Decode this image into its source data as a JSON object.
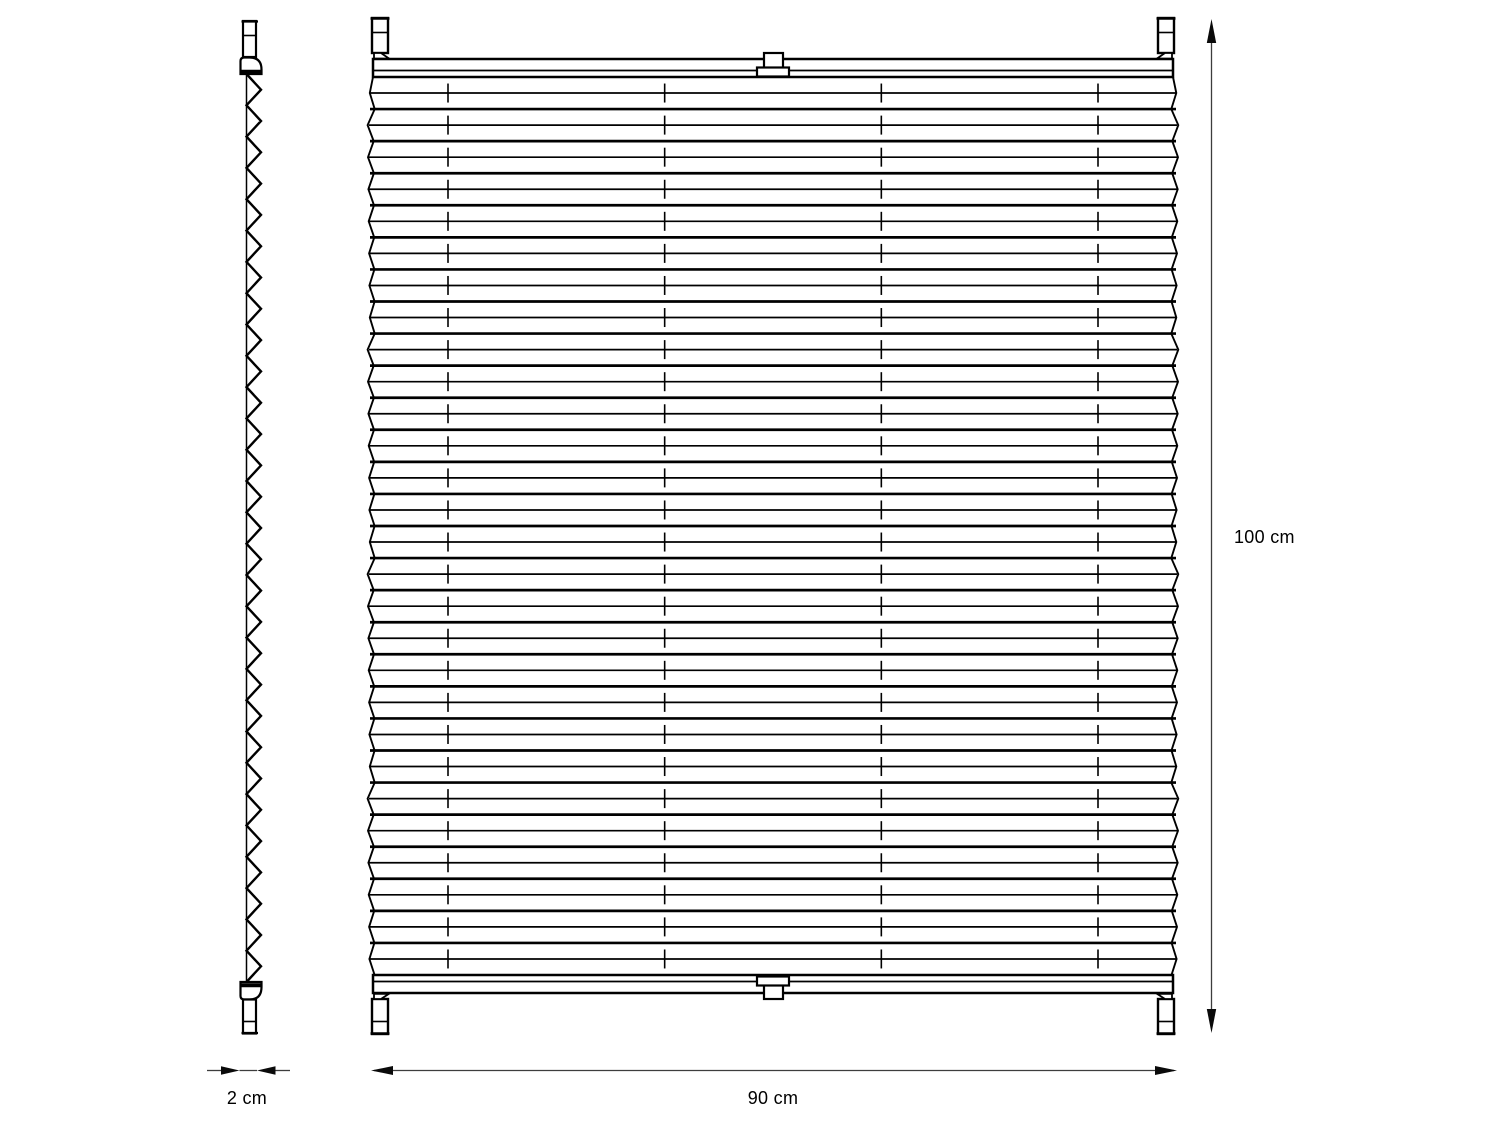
{
  "diagram": {
    "type": "technical-dimension-drawing",
    "subject": "Pleated blind (plissee) — side profile view and front view with dimensions",
    "colors": {
      "line": "#000000",
      "dimension_line": "#3d3d3d",
      "arrowhead": "#0a0a0a",
      "background": "#ffffff"
    },
    "labels": {
      "depth": "2 cm",
      "width": "90 cm",
      "height": "100 cm"
    },
    "side_view": {
      "description": "side profile with zigzag pleat folds, top/bottom rail profiles and clamp brackets",
      "pleat_tooth_count": 29
    },
    "front_view": {
      "description": "front face with horizontal pleats, top/bottom rails, center tabs and four corner clamp brackets",
      "pleat_count": 28,
      "fold_tick_column_count": 4
    }
  }
}
